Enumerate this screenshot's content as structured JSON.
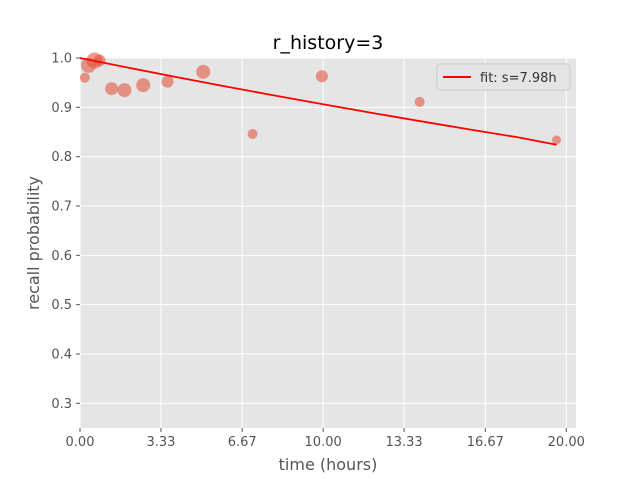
{
  "chart_data": {
    "type": "scatter",
    "title": "r_history=3",
    "xlabel": "time (hours)",
    "ylabel": "recall probability",
    "xlim": [
      0.0,
      20.4
    ],
    "ylim": [
      0.25,
      1.0
    ],
    "xticks": [
      0.0,
      3.33,
      6.67,
      10.0,
      13.33,
      16.67,
      20.0
    ],
    "xtick_labels": [
      "0.00",
      "3.33",
      "6.67",
      "10.00",
      "13.33",
      "16.67",
      "20.00"
    ],
    "yticks": [
      0.3,
      0.4,
      0.5,
      0.6,
      0.7,
      0.8,
      0.9,
      1.0
    ],
    "ytick_labels": [
      "0.3",
      "0.4",
      "0.5",
      "0.6",
      "0.7",
      "0.8",
      "0.9",
      "1.0"
    ],
    "grid": true,
    "legend_position": "top-right",
    "series": [
      {
        "kind": "scatter",
        "color": "#E24A33",
        "points": [
          {
            "x": 0.2,
            "y": 0.96,
            "size": 6
          },
          {
            "x": 0.35,
            "y": 0.985,
            "size": 11
          },
          {
            "x": 0.6,
            "y": 0.995,
            "size": 12
          },
          {
            "x": 0.8,
            "y": 0.995,
            "size": 8
          },
          {
            "x": 1.3,
            "y": 0.938,
            "size": 9
          },
          {
            "x": 1.83,
            "y": 0.935,
            "size": 10
          },
          {
            "x": 2.6,
            "y": 0.945,
            "size": 10
          },
          {
            "x": 3.6,
            "y": 0.952,
            "size": 8
          },
          {
            "x": 5.07,
            "y": 0.972,
            "size": 10
          },
          {
            "x": 7.1,
            "y": 0.846,
            "size": 6
          },
          {
            "x": 9.95,
            "y": 0.963,
            "size": 8
          },
          {
            "x": 13.97,
            "y": 0.911,
            "size": 6
          },
          {
            "x": 19.6,
            "y": 0.834,
            "size": 5
          }
        ]
      },
      {
        "kind": "line",
        "name": "fit: s=7.98h",
        "color": "#ff0000",
        "x": [
          0.0,
          2.0,
          4.0,
          6.0,
          8.0,
          10.0,
          12.0,
          14.0,
          16.0,
          18.0,
          19.6
        ],
        "y": [
          1.0,
          0.9802,
          0.961,
          0.9423,
          0.924,
          0.9062,
          0.8888,
          0.8719,
          0.8554,
          0.8393,
          0.8242
        ]
      }
    ]
  }
}
